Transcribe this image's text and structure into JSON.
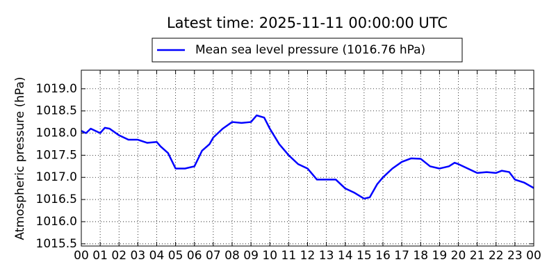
{
  "chart_data": {
    "type": "line",
    "title": "Latest time: 2025-11-11 00:00:00 UTC",
    "ylabel": "Atmospheric pressure (hPa)",
    "x": [
      0,
      0.25,
      0.5,
      1,
      1.25,
      1.5,
      2,
      2.5,
      3,
      3.5,
      4,
      4.2,
      4.6,
      5,
      5.5,
      6,
      6.4,
      6.8,
      7,
      7.5,
      8,
      8.5,
      9,
      9.3,
      9.7,
      10,
      10.5,
      11,
      11.5,
      12,
      12.5,
      13,
      13.5,
      14,
      14.5,
      15,
      15.3,
      15.7,
      16,
      16.5,
      17,
      17.5,
      18,
      18.5,
      19,
      19.5,
      19.8,
      20,
      20.5,
      21,
      21.5,
      22,
      22.3,
      22.7,
      23,
      23.5,
      24
    ],
    "series": [
      {
        "name": "Mean sea level pressure (1016.76 hPa)",
        "color": "#0000ff",
        "values": [
          1018.05,
          1018.0,
          1018.1,
          1018.0,
          1018.12,
          1018.1,
          1017.95,
          1017.85,
          1017.85,
          1017.78,
          1017.8,
          1017.7,
          1017.55,
          1017.2,
          1017.2,
          1017.25,
          1017.6,
          1017.75,
          1017.9,
          1018.1,
          1018.25,
          1018.23,
          1018.25,
          1018.4,
          1018.35,
          1018.1,
          1017.75,
          1017.5,
          1017.3,
          1017.2,
          1016.95,
          1016.95,
          1016.95,
          1016.75,
          1016.65,
          1016.52,
          1016.55,
          1016.85,
          1017.0,
          1017.2,
          1017.35,
          1017.43,
          1017.42,
          1017.25,
          1017.2,
          1017.25,
          1017.33,
          1017.3,
          1017.2,
          1017.1,
          1017.12,
          1017.1,
          1017.15,
          1017.12,
          1016.95,
          1016.88,
          1016.76
        ]
      }
    ],
    "xlim": [
      0,
      24
    ],
    "xticks": [
      {
        "value": 0,
        "label": "00"
      },
      {
        "value": 1,
        "label": "01"
      },
      {
        "value": 2,
        "label": "02"
      },
      {
        "value": 3,
        "label": "03"
      },
      {
        "value": 4,
        "label": "04"
      },
      {
        "value": 5,
        "label": "05"
      },
      {
        "value": 6,
        "label": "06"
      },
      {
        "value": 7,
        "label": "07"
      },
      {
        "value": 8,
        "label": "08"
      },
      {
        "value": 9,
        "label": "09"
      },
      {
        "value": 10,
        "label": "10"
      },
      {
        "value": 11,
        "label": "11"
      },
      {
        "value": 12,
        "label": "12"
      },
      {
        "value": 13,
        "label": "13"
      },
      {
        "value": 14,
        "label": "14"
      },
      {
        "value": 15,
        "label": "15"
      },
      {
        "value": 16,
        "label": "16"
      },
      {
        "value": 17,
        "label": "17"
      },
      {
        "value": 18,
        "label": "18"
      },
      {
        "value": 19,
        "label": "19"
      },
      {
        "value": 20,
        "label": "20"
      },
      {
        "value": 21,
        "label": "21"
      },
      {
        "value": 22,
        "label": "22"
      },
      {
        "value": 23,
        "label": "23"
      },
      {
        "value": 24,
        "label": "00"
      }
    ],
    "ylim": [
      1015.45,
      1019.42
    ],
    "yticks": [
      1015.5,
      {
        "value": 1016,
        "label": "1016.0"
      },
      1016.5,
      {
        "value": 1017,
        "label": "1017.0"
      },
      1017.5,
      {
        "value": 1018,
        "label": "1018.0"
      },
      1018.5,
      {
        "value": 1019,
        "label": "1019.0"
      }
    ],
    "grid": true,
    "legend": "upper center"
  }
}
